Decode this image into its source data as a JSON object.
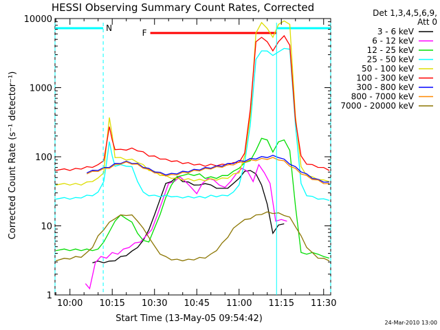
{
  "chart_data": {
    "type": "line",
    "title": "HESSI Observing Summary Count Rates, Corrected",
    "xlabel": "Start Time (13-May-05 09:54:42)",
    "ylabel": "Corrected Count Rate (s⁻¹ detector⁻¹)",
    "x_ticks": [
      "10:00",
      "10:15",
      "10:30",
      "10:45",
      "11:00",
      "11:15",
      "11:30"
    ],
    "x_tick_minutes": [
      0,
      15,
      30,
      45,
      60,
      75,
      90
    ],
    "xlim_minutes": [
      -5.3,
      92.5
    ],
    "y_scale": "log",
    "ylim": [
      1,
      10000
    ],
    "y_ticks": [
      "1",
      "10",
      "100",
      "1000",
      "10000"
    ],
    "legend": {
      "header": "Det 1,3,4,5,6,9,",
      "header2": "Att 0",
      "position": "right",
      "entries": [
        {
          "label": "3 - 6 keV",
          "color": "#000000"
        },
        {
          "label": "6 - 12 keV",
          "color": "#ff00ff"
        },
        {
          "label": "12 - 25 keV",
          "color": "#00dd00"
        },
        {
          "label": "25 - 50 keV",
          "color": "#00ffff"
        },
        {
          "label": "50 - 100 keV",
          "color": "#dddd00"
        },
        {
          "label": "100 - 300 keV",
          "color": "#ff0000"
        },
        {
          "label": "300 - 800 keV",
          "color": "#0000ff"
        },
        {
          "label": "800 - 7000 keV",
          "color": "#ff8800"
        },
        {
          "label": "7000 - 20000 keV",
          "color": "#8b7500"
        }
      ]
    },
    "flags": [
      {
        "label": "N",
        "color": "#00ffff",
        "segments": [
          [
            -5.3,
            11.8
          ],
          [
            73.3,
            92.5
          ]
        ]
      },
      {
        "label": "F",
        "color": "#ff0000",
        "segments": [
          [
            28.5,
            73.3
          ]
        ]
      }
    ],
    "vlines_dashed_minutes": [
      -5.3,
      11.8,
      92.5
    ],
    "vlines_solid_minutes": [
      73.3
    ],
    "series": [
      {
        "name": "3 - 6 keV",
        "color": "#000000",
        "x": [
          8,
          10,
          12,
          14,
          16,
          18,
          20,
          22,
          24,
          26,
          28,
          30,
          32,
          34,
          36,
          38,
          40,
          42,
          44,
          46,
          48,
          50,
          52,
          54,
          56,
          58,
          60,
          62,
          64,
          66,
          68,
          70,
          72,
          74,
          76
        ],
        "y": [
          3,
          3,
          3,
          3,
          3.2,
          3.5,
          3.8,
          4.2,
          5,
          6,
          9,
          14,
          25,
          40,
          45,
          50,
          45,
          42,
          40,
          38,
          42,
          38,
          36,
          34,
          36,
          40,
          50,
          60,
          65,
          55,
          40,
          20,
          8,
          10,
          11
        ]
      },
      {
        "name": "6 - 12 keV",
        "color": "#ff00ff",
        "x": [
          5.5,
          7,
          9,
          11,
          13,
          15,
          17,
          19,
          21,
          23,
          25,
          27,
          29,
          31,
          33,
          35,
          37,
          39,
          41,
          43,
          45,
          47,
          49,
          51,
          53,
          55,
          57,
          59,
          61,
          63,
          65,
          67,
          69,
          71,
          73,
          75,
          77
        ],
        "y": [
          1.5,
          1.2,
          3,
          3.5,
          3.5,
          4,
          4,
          4.5,
          5,
          5.5,
          6,
          7,
          9,
          14,
          25,
          40,
          45,
          50,
          45,
          35,
          30,
          40,
          50,
          45,
          40,
          35,
          45,
          55,
          70,
          60,
          45,
          75,
          60,
          40,
          12,
          12,
          12
        ]
      },
      {
        "name": "12 - 25 keV",
        "color": "#00dd00",
        "x": [
          -5,
          -2,
          0,
          2,
          4,
          6,
          8,
          10,
          12,
          14,
          16,
          18,
          20,
          22,
          24,
          26,
          28,
          30,
          32,
          34,
          36,
          38,
          40,
          42,
          44,
          46,
          48,
          50,
          52,
          54,
          56,
          58,
          60,
          62,
          64,
          66,
          68,
          70,
          72,
          74,
          76,
          78,
          80,
          82,
          84,
          86,
          88,
          90,
          92
        ],
        "y": [
          4.5,
          4.5,
          4.5,
          4.5,
          4.5,
          4.5,
          4.5,
          4.5,
          6,
          8,
          12,
          14,
          13,
          11,
          8,
          6,
          6,
          9,
          15,
          25,
          40,
          50,
          55,
          55,
          55,
          55,
          50,
          50,
          50,
          52,
          55,
          60,
          70,
          80,
          90,
          120,
          190,
          170,
          120,
          160,
          180,
          120,
          20,
          4,
          4,
          4,
          4,
          3.5,
          3.5
        ]
      },
      {
        "name": "25 - 50 keV",
        "color": "#00ffff",
        "x": [
          -5,
          -2,
          0,
          2,
          4,
          6,
          8,
          10,
          12,
          13,
          14,
          15,
          16,
          18,
          20,
          22,
          24,
          26,
          28,
          30,
          32,
          34,
          36,
          38,
          40,
          42,
          44,
          46,
          48,
          50,
          52,
          54,
          56,
          58,
          60,
          62,
          64,
          66,
          68,
          70,
          72,
          74,
          76,
          78,
          80,
          82,
          84,
          86,
          88,
          90,
          92
        ],
        "y": [
          25,
          25,
          25,
          25,
          26,
          27,
          28,
          30,
          45,
          80,
          170,
          100,
          75,
          75,
          75,
          70,
          45,
          30,
          28,
          27,
          27,
          27,
          27,
          26,
          26,
          26,
          26,
          26,
          26,
          27,
          27,
          27,
          28,
          30,
          40,
          80,
          300,
          2500,
          3500,
          3300,
          3000,
          3200,
          3800,
          3500,
          300,
          40,
          28,
          26,
          25,
          24,
          24
        ]
      },
      {
        "name": "50 - 100 keV",
        "color": "#dddd00",
        "x": [
          -5,
          -2,
          0,
          2,
          4,
          6,
          8,
          10,
          12,
          13,
          14,
          15,
          16,
          18,
          20,
          22,
          24,
          26,
          28,
          30,
          32,
          34,
          36,
          38,
          40,
          42,
          44,
          46,
          48,
          50,
          52,
          54,
          56,
          58,
          60,
          62,
          64,
          66,
          68,
          70,
          72,
          74,
          76,
          78,
          80,
          82,
          84,
          86,
          88,
          90,
          92
        ],
        "y": [
          40,
          40,
          40,
          40,
          40,
          42,
          45,
          48,
          60,
          150,
          380,
          200,
          100,
          95,
          92,
          90,
          85,
          75,
          65,
          60,
          55,
          52,
          50,
          48,
          47,
          47,
          46,
          46,
          46,
          47,
          47,
          48,
          50,
          55,
          60,
          100,
          400,
          6000,
          9000,
          7000,
          5500,
          8000,
          9500,
          8000,
          400,
          70,
          55,
          50,
          48,
          45,
          45
        ]
      },
      {
        "name": "100 - 300 keV",
        "color": "#ff0000",
        "x": [
          -5,
          -2,
          0,
          2,
          4,
          6,
          8,
          10,
          12,
          13,
          14,
          15,
          16,
          18,
          20,
          22,
          24,
          26,
          28,
          30,
          32,
          34,
          36,
          38,
          40,
          42,
          44,
          46,
          48,
          50,
          52,
          54,
          56,
          58,
          60,
          62,
          64,
          66,
          68,
          70,
          72,
          74,
          76,
          78,
          80,
          82,
          84,
          86,
          88,
          90,
          92
        ],
        "y": [
          65,
          65,
          65,
          66,
          68,
          70,
          72,
          75,
          90,
          150,
          280,
          170,
          130,
          125,
          128,
          130,
          125,
          115,
          105,
          100,
          95,
          90,
          88,
          85,
          82,
          80,
          78,
          76,
          75,
          76,
          76,
          76,
          78,
          80,
          85,
          110,
          500,
          4500,
          5500,
          4500,
          3500,
          4500,
          5800,
          4000,
          350,
          100,
          80,
          75,
          72,
          68,
          65
        ]
      },
      {
        "name": "300 - 800 keV",
        "color": "#0000ff",
        "x": [
          6,
          8,
          10,
          12,
          14,
          16,
          18,
          20,
          22,
          24,
          26,
          28,
          30,
          32,
          34,
          36,
          38,
          40,
          42,
          44,
          46,
          48,
          50,
          52,
          54,
          56,
          58,
          60,
          62,
          64,
          66,
          68,
          70,
          72,
          74,
          76,
          78,
          80,
          82,
          84,
          86,
          88,
          90,
          92
        ],
        "y": [
          60,
          62,
          65,
          68,
          72,
          78,
          82,
          84,
          82,
          78,
          72,
          66,
          62,
          58,
          56,
          56,
          58,
          60,
          62,
          64,
          66,
          68,
          70,
          72,
          75,
          78,
          82,
          86,
          88,
          92,
          95,
          98,
          100,
          102,
          100,
          90,
          80,
          70,
          62,
          55,
          50,
          46,
          44,
          42
        ]
      },
      {
        "name": "800 - 7000 keV",
        "color": "#ff8800",
        "x": [
          6,
          8,
          10,
          12,
          14,
          16,
          18,
          20,
          22,
          24,
          26,
          28,
          30,
          32,
          34,
          36,
          38,
          40,
          42,
          44,
          46,
          48,
          50,
          52,
          54,
          56,
          58,
          60,
          62,
          64,
          66,
          68,
          70,
          72,
          74,
          76,
          78,
          80,
          82,
          84,
          86,
          88,
          90,
          92
        ],
        "y": [
          58,
          60,
          63,
          66,
          70,
          75,
          80,
          82,
          80,
          76,
          70,
          64,
          60,
          56,
          54,
          54,
          56,
          58,
          60,
          62,
          64,
          66,
          68,
          70,
          72,
          75,
          78,
          82,
          85,
          88,
          90,
          92,
          94,
          95,
          92,
          85,
          75,
          66,
          58,
          52,
          48,
          45,
          42,
          40
        ]
      },
      {
        "name": "7000 - 20000 keV",
        "color": "#8b7500",
        "x": [
          -5,
          -2,
          0,
          2,
          4,
          6,
          8,
          10,
          12,
          14,
          16,
          18,
          20,
          22,
          24,
          26,
          28,
          30,
          32,
          34,
          36,
          38,
          40,
          42,
          44,
          46,
          48,
          50,
          52,
          54,
          56,
          58,
          60,
          62,
          64,
          66,
          68,
          70,
          72,
          74,
          76,
          78,
          80,
          82,
          84,
          86,
          88,
          90,
          92
        ],
        "y": [
          3.2,
          3.3,
          3.4,
          3.5,
          3.6,
          4,
          5,
          7,
          9,
          11,
          13,
          14,
          14.5,
          14,
          12,
          9,
          7,
          5,
          4,
          3.5,
          3.3,
          3.2,
          3.2,
          3.2,
          3.3,
          3.4,
          3.5,
          3.8,
          4.5,
          5.5,
          7,
          9,
          11,
          12,
          13,
          14,
          15,
          15.5,
          15.5,
          15,
          14.5,
          13,
          10,
          7,
          5,
          4,
          3.5,
          3.3,
          3.2
        ]
      }
    ]
  },
  "timestamp": "24-Mar-2010 13:00"
}
